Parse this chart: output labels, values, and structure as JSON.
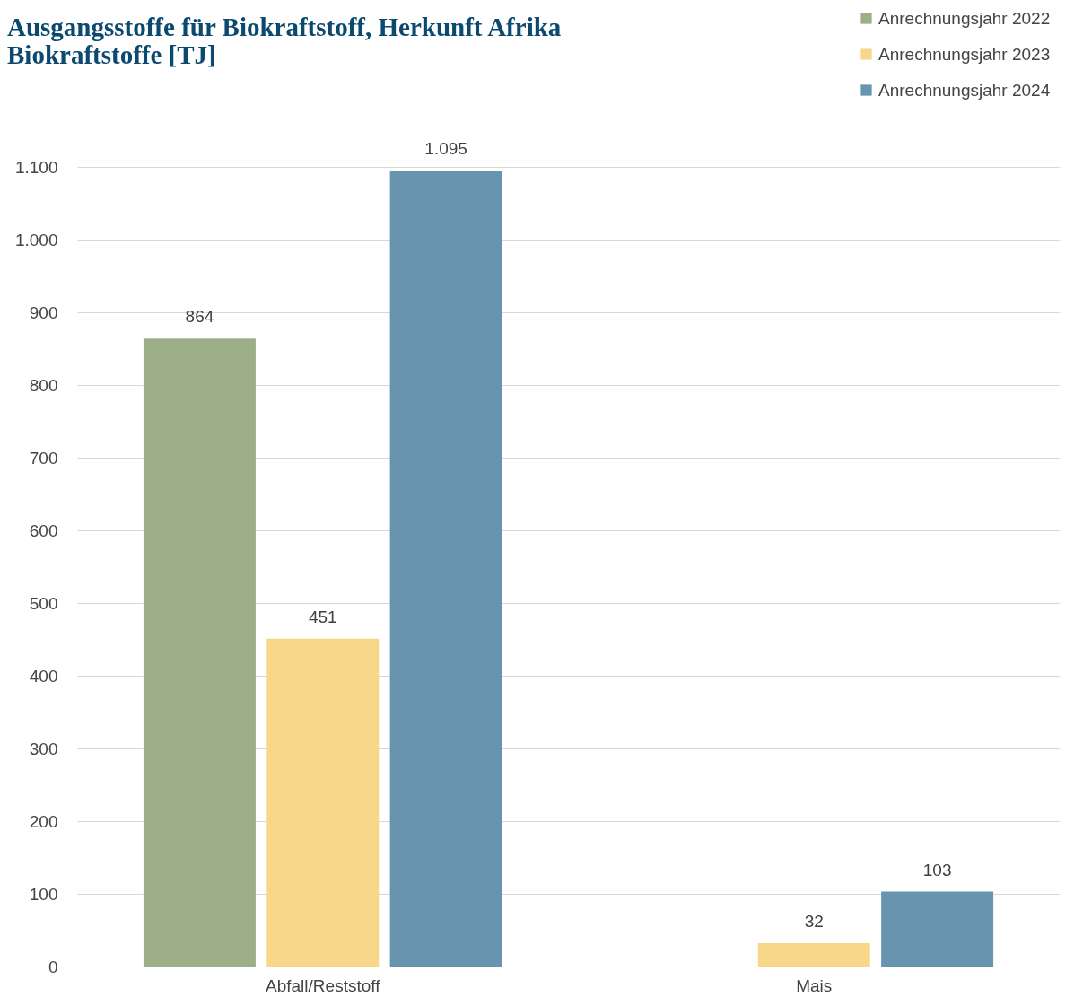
{
  "chart_data": {
    "type": "bar",
    "title": "Ausgangsstoffe für Biokraftstoff, Herkunft Afrika",
    "subtitle": "Biokraftstoffe [TJ]",
    "categories": [
      "Abfall/Reststoff",
      "Mais"
    ],
    "series": [
      {
        "name": "Anrechnungsjahr 2022",
        "color": "#9caf88",
        "values": [
          864,
          null
        ],
        "value_labels": [
          "864",
          null
        ]
      },
      {
        "name": "Anrechnungsjahr 2023",
        "color": "#f8d78b",
        "values": [
          451,
          32
        ],
        "value_labels": [
          "451",
          "32"
        ]
      },
      {
        "name": "Anrechnungsjahr 2024",
        "color": "#6795b0",
        "values": [
          1095,
          103
        ],
        "value_labels": [
          "1.095",
          "103"
        ]
      }
    ],
    "ylim": [
      0,
      1100
    ],
    "yticks": [
      0,
      100,
      200,
      300,
      400,
      500,
      600,
      700,
      800,
      900,
      {
        "value": 1000,
        "label": "1.000"
      },
      {
        "value": 1100,
        "label": "1.100"
      }
    ],
    "grid": "y",
    "legend": "top right"
  }
}
